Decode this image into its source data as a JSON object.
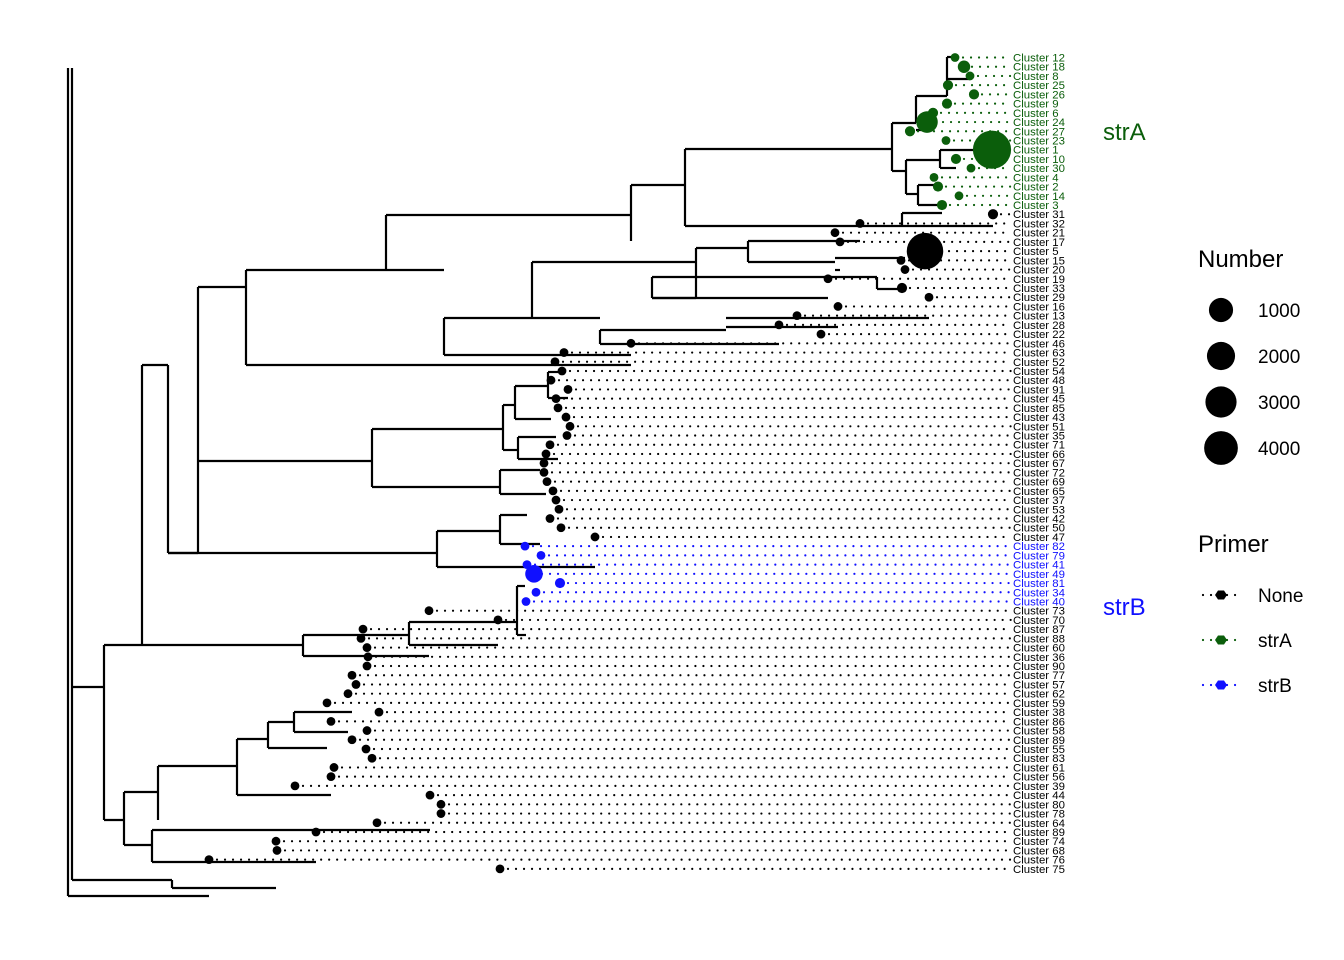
{
  "colors": {
    "None": "#000000",
    "strA": "#0B5E0B",
    "strB": "#1010FF"
  },
  "tips": [
    {
      "label": "Cluster 12",
      "primer": "strA",
      "n": 30
    },
    {
      "label": "Cluster 18",
      "primer": "strA",
      "n": 60
    },
    {
      "label": "Cluster 8",
      "primer": "strA",
      "n": 30
    },
    {
      "label": "Cluster 25",
      "primer": "strA",
      "n": 40
    },
    {
      "label": "Cluster 26",
      "primer": "strA",
      "n": 40
    },
    {
      "label": "Cluster 9",
      "primer": "strA",
      "n": 40
    },
    {
      "label": "Cluster 6",
      "primer": "strA",
      "n": 40
    },
    {
      "label": "Cluster 24",
      "primer": "strA",
      "n": 180
    },
    {
      "label": "Cluster 27",
      "primer": "strA",
      "n": 40
    },
    {
      "label": "Cluster 23",
      "primer": "strA",
      "n": 30
    },
    {
      "label": "Cluster 1",
      "primer": "strA",
      "n": 4500
    },
    {
      "label": "Cluster 10",
      "primer": "strA",
      "n": 40
    },
    {
      "label": "Cluster 30",
      "primer": "strA",
      "n": 30
    },
    {
      "label": "Cluster 4",
      "primer": "strA",
      "n": 30
    },
    {
      "label": "Cluster 2",
      "primer": "strA",
      "n": 40
    },
    {
      "label": "Cluster 14",
      "primer": "strA",
      "n": 30
    },
    {
      "label": "Cluster 3",
      "primer": "strA",
      "n": 40
    },
    {
      "label": "Cluster 31",
      "primer": "None",
      "n": 40
    },
    {
      "label": "Cluster 32",
      "primer": "None",
      "n": 30
    },
    {
      "label": "Cluster 21",
      "primer": "None",
      "n": 30
    },
    {
      "label": "Cluster 17",
      "primer": "None",
      "n": 30
    },
    {
      "label": "Cluster 5",
      "primer": "None",
      "n": 4100
    },
    {
      "label": "Cluster 15",
      "primer": "None",
      "n": 30
    },
    {
      "label": "Cluster 20",
      "primer": "None",
      "n": 30
    },
    {
      "label": "Cluster 19",
      "primer": "None",
      "n": 30
    },
    {
      "label": "Cluster 33",
      "primer": "None",
      "n": 40
    },
    {
      "label": "Cluster 29",
      "primer": "None",
      "n": 30
    },
    {
      "label": "Cluster 16",
      "primer": "None",
      "n": 30
    },
    {
      "label": "Cluster 13",
      "primer": "None",
      "n": 30
    },
    {
      "label": "Cluster 28",
      "primer": "None",
      "n": 30
    },
    {
      "label": "Cluster 22",
      "primer": "None",
      "n": 30
    },
    {
      "label": "Cluster 46",
      "primer": "None",
      "n": 30
    },
    {
      "label": "Cluster 63",
      "primer": "None",
      "n": 30
    },
    {
      "label": "Cluster 52",
      "primer": "None",
      "n": 30
    },
    {
      "label": "Cluster 54",
      "primer": "None",
      "n": 30
    },
    {
      "label": "Cluster 48",
      "primer": "None",
      "n": 30
    },
    {
      "label": "Cluster 91",
      "primer": "None",
      "n": 30
    },
    {
      "label": "Cluster 45",
      "primer": "None",
      "n": 30
    },
    {
      "label": "Cluster 85",
      "primer": "None",
      "n": 30
    },
    {
      "label": "Cluster 43",
      "primer": "None",
      "n": 30
    },
    {
      "label": "Cluster 51",
      "primer": "None",
      "n": 30
    },
    {
      "label": "Cluster 35",
      "primer": "None",
      "n": 30
    },
    {
      "label": "Cluster 71",
      "primer": "None",
      "n": 30
    },
    {
      "label": "Cluster 66",
      "primer": "None",
      "n": 30
    },
    {
      "label": "Cluster 67",
      "primer": "None",
      "n": 30
    },
    {
      "label": "Cluster 72",
      "primer": "None",
      "n": 30
    },
    {
      "label": "Cluster 69",
      "primer": "None",
      "n": 30
    },
    {
      "label": "Cluster 65",
      "primer": "None",
      "n": 30
    },
    {
      "label": "Cluster 37",
      "primer": "None",
      "n": 30
    },
    {
      "label": "Cluster 53",
      "primer": "None",
      "n": 30
    },
    {
      "label": "Cluster 42",
      "primer": "None",
      "n": 30
    },
    {
      "label": "Cluster 50",
      "primer": "None",
      "n": 30
    },
    {
      "label": "Cluster 47",
      "primer": "None",
      "n": 30
    },
    {
      "label": "Cluster 82",
      "primer": "strB",
      "n": 30
    },
    {
      "label": "Cluster 79",
      "primer": "strB",
      "n": 30
    },
    {
      "label": "Cluster 41",
      "primer": "strB",
      "n": 30
    },
    {
      "label": "Cluster 49",
      "primer": "strB",
      "n": 120
    },
    {
      "label": "Cluster 81",
      "primer": "strB",
      "n": 40
    },
    {
      "label": "Cluster 34",
      "primer": "strB",
      "n": 30
    },
    {
      "label": "Cluster 40",
      "primer": "strB",
      "n": 30
    },
    {
      "label": "Cluster 73",
      "primer": "None",
      "n": 30
    },
    {
      "label": "Cluster 70",
      "primer": "None",
      "n": 30
    },
    {
      "label": "Cluster 87",
      "primer": "None",
      "n": 30
    },
    {
      "label": "Cluster 88",
      "primer": "None",
      "n": 30
    },
    {
      "label": "Cluster 60",
      "primer": "None",
      "n": 30
    },
    {
      "label": "Cluster 36",
      "primer": "None",
      "n": 30
    },
    {
      "label": "Cluster 90",
      "primer": "None",
      "n": 30
    },
    {
      "label": "Cluster 77",
      "primer": "None",
      "n": 30
    },
    {
      "label": "Cluster 57",
      "primer": "None",
      "n": 30
    },
    {
      "label": "Cluster 62",
      "primer": "None",
      "n": 30
    },
    {
      "label": "Cluster 59",
      "primer": "None",
      "n": 30
    },
    {
      "label": "Cluster 38",
      "primer": "None",
      "n": 30
    },
    {
      "label": "Cluster 86",
      "primer": "None",
      "n": 30
    },
    {
      "label": "Cluster 58",
      "primer": "None",
      "n": 30
    },
    {
      "label": "Cluster 89",
      "primer": "None",
      "n": 30
    },
    {
      "label": "Cluster 55",
      "primer": "None",
      "n": 30
    },
    {
      "label": "Cluster 83",
      "primer": "None",
      "n": 30
    },
    {
      "label": "Cluster 61",
      "primer": "None",
      "n": 30
    },
    {
      "label": "Cluster 56",
      "primer": "None",
      "n": 30
    },
    {
      "label": "Cluster 39",
      "primer": "None",
      "n": 30
    },
    {
      "label": "Cluster 44",
      "primer": "None",
      "n": 30
    },
    {
      "label": "Cluster 80",
      "primer": "None",
      "n": 30
    },
    {
      "label": "Cluster 78",
      "primer": "None",
      "n": 30
    },
    {
      "label": "Cluster 64",
      "primer": "None",
      "n": 30
    },
    {
      "label": "Cluster 89",
      "primer": "None",
      "n": 30
    },
    {
      "label": "Cluster 74",
      "primer": "None",
      "n": 30
    },
    {
      "label": "Cluster 68",
      "primer": "None",
      "n": 30
    },
    {
      "label": "Cluster 76",
      "primer": "None",
      "n": 30
    },
    {
      "label": "Cluster 75",
      "primer": "None",
      "n": 30
    }
  ],
  "clade_labels": [
    {
      "text": "strA",
      "primer": "strA"
    },
    {
      "text": "strB",
      "primer": "strB"
    }
  ],
  "legend": {
    "size_title": "Number",
    "size_items": [
      {
        "label": "1000",
        "value": 1000
      },
      {
        "label": "2000",
        "value": 2000
      },
      {
        "label": "3000",
        "value": 3000
      },
      {
        "label": "4000",
        "value": 4000
      }
    ],
    "color_title": "Primer",
    "color_items": [
      {
        "label": "None",
        "primer": "None"
      },
      {
        "label": "strA",
        "primer": "strA"
      },
      {
        "label": "strB",
        "primer": "strB"
      }
    ]
  }
}
